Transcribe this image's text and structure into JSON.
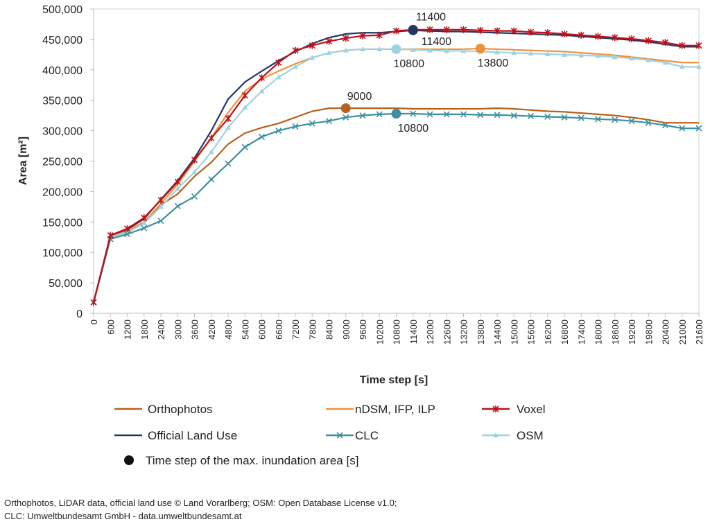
{
  "chart_data": {
    "type": "line",
    "xlabel": "Time step [s]",
    "ylabel": "Area [m²]",
    "ylim": [
      0,
      500000
    ],
    "yticks": [
      0,
      50000,
      100000,
      150000,
      200000,
      250000,
      300000,
      350000,
      400000,
      450000,
      500000
    ],
    "ytick_labels": [
      "0",
      "50,000",
      "100,000",
      "150,000",
      "200,000",
      "250,000",
      "300,000",
      "350,000",
      "400,000",
      "450,000",
      "500,000"
    ],
    "x": [
      0,
      600,
      1200,
      1800,
      2400,
      3000,
      3600,
      4200,
      4800,
      5400,
      6000,
      6600,
      7200,
      7800,
      8400,
      9000,
      9600,
      10200,
      10800,
      11400,
      12000,
      12600,
      13200,
      13800,
      14400,
      15000,
      15600,
      16200,
      16800,
      17400,
      18000,
      18600,
      19200,
      19800,
      20400,
      21000,
      21600
    ],
    "grid": false,
    "legend_placement": "bottom",
    "series": [
      {
        "name": "Orthophotos",
        "color": "#b8601a",
        "marker": "none",
        "values": [
          18000,
          125000,
          133000,
          148000,
          178000,
          196000,
          225000,
          248000,
          278000,
          296000,
          305000,
          312000,
          322000,
          332000,
          337000,
          337000,
          337000,
          337000,
          337000,
          336000,
          336000,
          336000,
          336000,
          336000,
          337000,
          336000,
          334000,
          332000,
          331000,
          329000,
          327000,
          325000,
          322000,
          318000,
          313000,
          313000,
          313000
        ],
        "max_step": 9000,
        "max_label": "9000",
        "label_pos": "above"
      },
      {
        "name": "nDSM, IFP, ILP",
        "color": "#f0913a",
        "marker": "none",
        "values": [
          18000,
          127000,
          136000,
          150000,
          180000,
          212000,
          250000,
          288000,
          330000,
          365000,
          385000,
          398000,
          410000,
          420000,
          428000,
          432000,
          434000,
          434000,
          434000,
          434000,
          434000,
          434000,
          434000,
          435000,
          434000,
          433000,
          432000,
          431000,
          430000,
          428000,
          426000,
          424000,
          421000,
          418000,
          415000,
          412000,
          412000
        ],
        "max_step": 13800,
        "max_label": "13800",
        "label_pos": "below"
      },
      {
        "name": "Voxel",
        "color": "#c0101a",
        "marker": "star",
        "values": [
          18000,
          128000,
          139000,
          157000,
          186000,
          216000,
          252000,
          288000,
          320000,
          358000,
          387000,
          412000,
          432000,
          440000,
          447000,
          452000,
          456000,
          457000,
          464000,
          466000,
          466000,
          466000,
          466000,
          465000,
          464000,
          464000,
          462000,
          461000,
          459000,
          457000,
          455000,
          453000,
          451000,
          448000,
          445000,
          440000,
          440000
        ],
        "max_step": 11400,
        "max_label": "11400",
        "label_pos": "below"
      },
      {
        "name": "Official Land Use",
        "color": "#1f3864",
        "marker": "none",
        "values": [
          18000,
          128000,
          138000,
          155000,
          187000,
          218000,
          255000,
          300000,
          352000,
          380000,
          398000,
          415000,
          430000,
          443000,
          453000,
          459000,
          461000,
          461000,
          463000,
          465000,
          464000,
          463000,
          463000,
          462000,
          461000,
          460000,
          459000,
          458000,
          457000,
          455000,
          453000,
          451000,
          449000,
          446000,
          442000,
          438000,
          438000
        ],
        "max_step": 11400,
        "max_label": "11400",
        "label_pos": "above"
      },
      {
        "name": "CLC",
        "color": "#3a8fa0",
        "marker": "x",
        "values": [
          18000,
          122000,
          130000,
          140000,
          152000,
          176000,
          192000,
          220000,
          246000,
          273000,
          290000,
          300000,
          307000,
          312000,
          316000,
          322000,
          325000,
          327000,
          328000,
          328000,
          327000,
          327000,
          327000,
          326000,
          326000,
          325000,
          324000,
          323000,
          322000,
          321000,
          319000,
          318000,
          316000,
          313000,
          309000,
          304000,
          304000
        ],
        "max_step": 10800,
        "max_label": "10800",
        "label_pos": "below"
      },
      {
        "name": "OSM",
        "color": "#9dd3e3",
        "marker": "triangle",
        "values": [
          18000,
          125000,
          133000,
          148000,
          175000,
          205000,
          232000,
          265000,
          305000,
          338000,
          365000,
          388000,
          405000,
          420000,
          428000,
          432000,
          434000,
          434000,
          434000,
          433000,
          432000,
          431000,
          431000,
          430000,
          429000,
          428000,
          427000,
          426000,
          425000,
          424000,
          423000,
          421000,
          419000,
          416000,
          412000,
          405000,
          405000
        ],
        "max_step": 10800,
        "max_label": "10800",
        "label_pos": "below"
      }
    ],
    "max_marker_legend": "Time step of the max. inundation area [s]"
  },
  "footer": {
    "line1": "Orthophotos, LiDAR data, official land use © Land Vorarlberg; OSM: Open Database License v1.0;",
    "line2": "CLC: Umweltbundesamt GmbH - data.umweltbundesamt.at"
  }
}
